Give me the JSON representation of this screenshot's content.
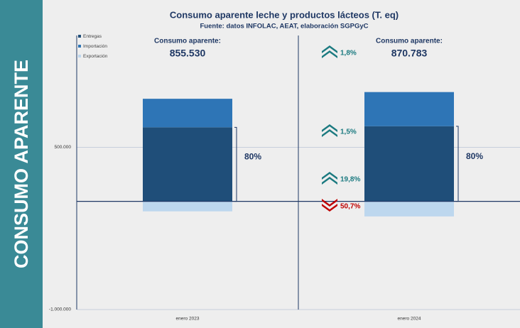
{
  "side_title": "CONSUMO APARENTE",
  "chart_data": {
    "type": "bar",
    "stacked": true,
    "title": "Consumo aparente leche y productos lácteos (T. eq)",
    "subtitle": "Fuente: datos INFOLAC, AEAT, elaboración SGPGyC",
    "categories": [
      "enero 2023",
      "enero 2024"
    ],
    "series": [
      {
        "name": "Entregas",
        "color": "#1f4e79",
        "values": [
          684000,
          694000
        ]
      },
      {
        "name": "Importación",
        "color": "#2e75b6",
        "values": [
          264000,
          316000
        ]
      },
      {
        "name": "Exportación",
        "color": "#bdd7ee",
        "values": [
          -92500,
          -139400
        ]
      }
    ],
    "ylim": [
      -1000000,
      1500000
    ],
    "yticks": [
      {
        "value": -1000000,
        "label": "-1.000.000"
      },
      {
        "value": 500000,
        "label": "500.000"
      }
    ],
    "grid": true,
    "legend": "top-left",
    "totals": {
      "label": "Consumo aparente:",
      "values": [
        855530,
        870783
      ],
      "value_labels": [
        "855.530",
        "870.783"
      ]
    },
    "entregas_share": {
      "values": [
        80,
        80
      ],
      "value_labels": [
        "80%",
        "80%"
      ]
    },
    "changes": {
      "values": [
        1.8,
        1.5,
        19.8,
        50.7
      ],
      "value_labels": [
        "1,8%",
        "1,5%",
        "19,8%",
        "50,7%"
      ],
      "directions": [
        "up",
        "up",
        "up",
        "down"
      ]
    }
  }
}
